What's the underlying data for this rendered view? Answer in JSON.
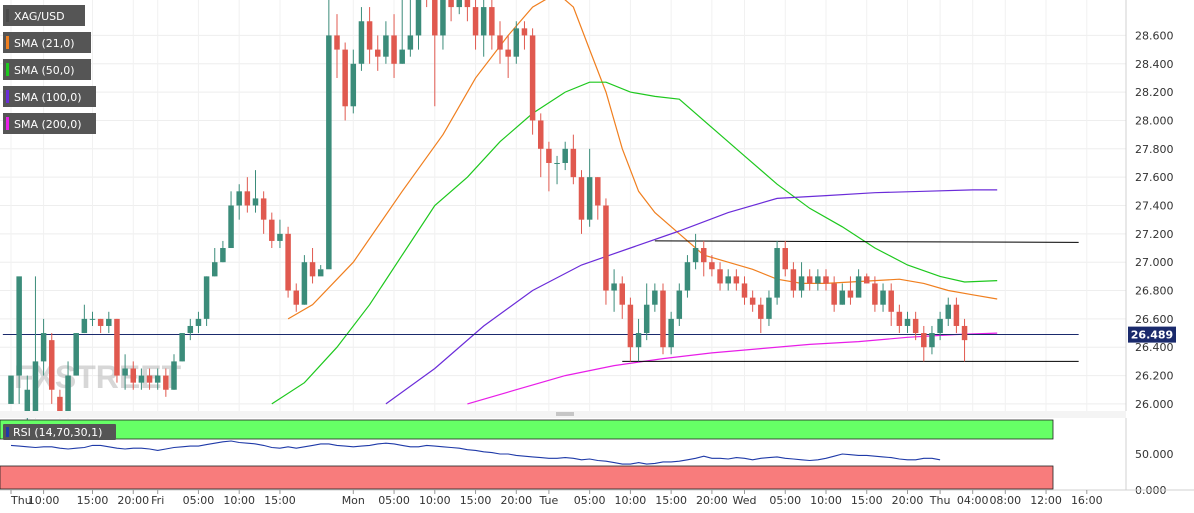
{
  "chart_data": {
    "type": "candlestick",
    "symbol": "XAG/USD",
    "indicators": [
      {
        "label": "XAG/USD",
        "color": "#4a4a4a"
      },
      {
        "label": "SMA (21,0)",
        "color": "#f07f1f"
      },
      {
        "label": "SMA (50,0)",
        "color": "#1ec81e"
      },
      {
        "label": "SMA (100,0)",
        "color": "#6b2cd9"
      },
      {
        "label": "SMA (200,0)",
        "color": "#e81ee8"
      }
    ],
    "ylim": [
      25.95,
      28.85
    ],
    "y_ticks": [
      "28.600",
      "28.400",
      "28.200",
      "28.000",
      "27.800",
      "27.600",
      "27.400",
      "27.200",
      "27.000",
      "26.800",
      "26.600",
      "26.400",
      "26.200",
      "26.000"
    ],
    "y_tick_values": [
      28.6,
      28.4,
      28.2,
      28.0,
      27.8,
      27.6,
      27.4,
      27.2,
      27.0,
      26.8,
      26.6,
      26.4,
      26.2,
      26.0
    ],
    "last_price": "26.489",
    "last_price_value": 26.489,
    "x_ticks": [
      "Thu",
      "10:00",
      "15:00",
      "20:00",
      "Fri",
      "05:00",
      "10:00",
      "15:00",
      "Mon",
      "05:00",
      "10:00",
      "15:00",
      "20:00",
      "Tue",
      "05:00",
      "10:00",
      "15:00",
      "20:00",
      "Wed",
      "05:00",
      "10:00",
      "15:00",
      "20:00",
      "Thu",
      "04:00",
      "08:00",
      "12:00",
      "16:00"
    ],
    "x_tick_positions": [
      0,
      4,
      10,
      15,
      18,
      23,
      28,
      33,
      42,
      47,
      52,
      57,
      62,
      66,
      71,
      76,
      81,
      86,
      90,
      95,
      100,
      105,
      110,
      114,
      118,
      122,
      127,
      132
    ],
    "candles": [
      [
        26.0,
        26.2,
        26.2,
        26.0
      ],
      [
        26.2,
        26.9,
        26.2,
        26.0
      ],
      [
        25.9,
        26.1,
        26.2,
        25.8
      ],
      [
        25.95,
        26.3,
        26.9,
        25.9
      ],
      [
        26.3,
        26.5,
        26.6,
        26.2
      ],
      [
        26.45,
        26.1,
        26.5,
        26.0
      ],
      [
        26.05,
        25.95,
        26.1,
        25.9
      ],
      [
        25.95,
        26.2,
        26.3,
        25.9
      ],
      [
        26.2,
        26.5,
        26.5,
        26.2
      ],
      [
        26.5,
        26.6,
        26.7,
        26.5
      ],
      [
        26.6,
        26.6,
        26.65,
        26.55
      ],
      [
        26.6,
        26.55,
        26.6,
        26.5
      ],
      [
        26.55,
        26.6,
        26.65,
        26.5
      ],
      [
        26.6,
        26.2,
        26.6,
        26.15
      ],
      [
        26.2,
        26.25,
        26.35,
        26.1
      ],
      [
        26.25,
        26.15,
        26.3,
        26.1
      ],
      [
        26.15,
        26.2,
        26.25,
        26.1
      ],
      [
        26.2,
        26.15,
        26.25,
        26.1
      ],
      [
        26.15,
        26.2,
        26.25,
        26.1
      ],
      [
        26.2,
        26.1,
        26.25,
        26.05
      ],
      [
        26.1,
        26.3,
        26.35,
        26.1
      ],
      [
        26.3,
        26.5,
        26.5,
        26.3
      ],
      [
        26.5,
        26.55,
        26.6,
        26.45
      ],
      [
        26.55,
        26.6,
        26.65,
        26.5
      ],
      [
        26.6,
        26.9,
        26.9,
        26.55
      ],
      [
        26.9,
        27.0,
        27.1,
        26.9
      ],
      [
        27.0,
        27.1,
        27.15,
        27.0
      ],
      [
        27.1,
        27.4,
        27.5,
        27.1
      ],
      [
        27.4,
        27.5,
        27.55,
        27.3
      ],
      [
        27.5,
        27.4,
        27.6,
        27.35
      ],
      [
        27.4,
        27.45,
        27.65,
        27.35
      ],
      [
        27.45,
        27.3,
        27.5,
        27.2
      ],
      [
        27.3,
        27.15,
        27.35,
        27.1
      ],
      [
        27.15,
        27.2,
        27.3,
        27.1
      ],
      [
        27.2,
        26.8,
        27.25,
        26.75
      ],
      [
        26.8,
        26.7,
        26.85,
        26.65
      ],
      [
        26.7,
        27.0,
        27.05,
        26.7
      ],
      [
        27.0,
        26.9,
        27.1,
        26.85
      ],
      [
        26.9,
        26.95,
        26.98,
        26.95
      ],
      [
        26.95,
        28.6,
        28.9,
        28.4
      ],
      [
        28.6,
        28.5,
        28.75,
        28.3
      ],
      [
        28.5,
        28.1,
        28.55,
        28.0
      ],
      [
        28.1,
        28.4,
        28.5,
        28.05
      ],
      [
        28.4,
        28.7,
        28.8,
        28.35
      ],
      [
        28.7,
        28.5,
        28.8,
        28.4
      ],
      [
        28.5,
        28.45,
        28.6,
        28.35
      ],
      [
        28.45,
        28.6,
        28.7,
        28.4
      ],
      [
        28.6,
        28.4,
        28.75,
        28.3
      ],
      [
        28.4,
        28.5,
        28.9,
        28.4
      ],
      [
        28.5,
        28.6,
        28.9,
        28.45
      ],
      [
        28.6,
        29.1,
        29.2,
        28.5
      ],
      [
        29.1,
        28.9,
        29.2,
        28.8
      ],
      [
        28.9,
        28.6,
        29.1,
        28.1
      ],
      [
        28.6,
        28.9,
        29.0,
        28.5
      ],
      [
        28.9,
        28.8,
        29.0,
        28.7
      ],
      [
        28.8,
        28.9,
        29.0,
        28.75
      ],
      [
        28.9,
        28.8,
        29.0,
        28.7
      ],
      [
        28.8,
        28.6,
        28.9,
        28.5
      ],
      [
        28.6,
        28.8,
        28.9,
        28.45
      ],
      [
        28.8,
        28.6,
        28.9,
        28.5
      ],
      [
        28.6,
        28.5,
        28.7,
        28.4
      ],
      [
        28.5,
        28.45,
        28.6,
        28.3
      ],
      [
        28.45,
        28.65,
        28.7,
        28.4
      ],
      [
        28.65,
        28.6,
        28.7,
        28.5
      ],
      [
        28.6,
        28.0,
        28.65,
        27.9
      ],
      [
        28.0,
        27.8,
        28.05,
        27.6
      ],
      [
        27.8,
        27.7,
        27.85,
        27.5
      ],
      [
        27.7,
        27.7,
        27.75,
        27.55
      ],
      [
        27.7,
        27.8,
        27.85,
        27.65
      ],
      [
        27.8,
        27.6,
        27.9,
        27.55
      ],
      [
        27.6,
        27.3,
        27.65,
        27.2
      ],
      [
        27.3,
        27.6,
        27.8,
        27.25
      ],
      [
        27.6,
        27.4,
        27.6,
        27.3
      ],
      [
        27.4,
        26.8,
        27.45,
        26.7
      ],
      [
        26.8,
        26.85,
        26.95,
        26.65
      ],
      [
        26.85,
        26.7,
        26.9,
        26.6
      ],
      [
        26.7,
        26.4,
        26.75,
        26.3
      ],
      [
        26.4,
        26.5,
        26.6,
        26.3
      ],
      [
        26.5,
        26.7,
        26.85,
        26.45
      ],
      [
        26.7,
        26.8,
        26.85,
        26.65
      ],
      [
        26.8,
        26.4,
        26.85,
        26.35
      ],
      [
        26.4,
        26.6,
        26.65,
        26.35
      ],
      [
        26.6,
        26.8,
        26.85,
        26.55
      ],
      [
        26.8,
        27.0,
        27.05,
        26.75
      ],
      [
        27.0,
        27.1,
        27.2,
        26.95
      ],
      [
        27.1,
        27.0,
        27.15,
        26.9
      ],
      [
        27.0,
        26.95,
        27.05,
        26.9
      ],
      [
        26.95,
        26.85,
        27.0,
        26.8
      ],
      [
        26.85,
        26.9,
        26.95,
        26.8
      ],
      [
        26.9,
        26.85,
        26.95,
        26.8
      ],
      [
        26.85,
        26.75,
        26.9,
        26.7
      ],
      [
        26.75,
        26.7,
        26.8,
        26.65
      ],
      [
        26.7,
        26.6,
        26.75,
        26.5
      ],
      [
        26.6,
        26.75,
        26.8,
        26.55
      ],
      [
        26.75,
        27.1,
        27.15,
        26.7
      ],
      [
        27.1,
        26.95,
        27.15,
        26.9
      ],
      [
        26.95,
        26.8,
        27.0,
        26.75
      ],
      [
        26.8,
        26.9,
        27.0,
        26.75
      ],
      [
        26.9,
        26.85,
        26.95,
        26.8
      ],
      [
        26.85,
        26.9,
        26.95,
        26.8
      ],
      [
        26.9,
        26.85,
        26.95,
        26.8
      ],
      [
        26.85,
        26.7,
        26.9,
        26.65
      ],
      [
        26.7,
        26.8,
        26.85,
        26.7
      ],
      [
        26.8,
        26.75,
        26.9,
        26.7
      ],
      [
        26.75,
        26.9,
        26.95,
        26.8
      ],
      [
        26.9,
        26.85,
        26.92,
        26.85
      ],
      [
        26.85,
        26.7,
        26.9,
        26.65
      ],
      [
        26.7,
        26.8,
        26.85,
        26.65
      ],
      [
        26.8,
        26.65,
        26.85,
        26.55
      ],
      [
        26.65,
        26.55,
        26.7,
        26.5
      ],
      [
        26.55,
        26.6,
        26.65,
        26.5
      ],
      [
        26.6,
        26.5,
        26.65,
        26.45
      ],
      [
        26.5,
        26.4,
        26.55,
        26.3
      ],
      [
        26.4,
        26.5,
        26.55,
        26.35
      ],
      [
        26.5,
        26.6,
        26.65,
        26.45
      ],
      [
        26.6,
        26.7,
        26.75,
        26.55
      ],
      [
        26.7,
        26.55,
        26.75,
        26.5
      ],
      [
        26.55,
        26.45,
        26.6,
        26.3
      ]
    ],
    "sma21": [
      [
        34,
        26.6
      ],
      [
        37,
        26.7
      ],
      [
        42,
        27.0
      ],
      [
        48,
        27.5
      ],
      [
        53,
        27.9
      ],
      [
        57,
        28.3
      ],
      [
        61,
        28.6
      ],
      [
        64,
        28.8
      ],
      [
        67,
        28.9
      ],
      [
        69,
        28.8
      ],
      [
        71,
        28.5
      ],
      [
        73,
        28.2
      ],
      [
        75,
        27.8
      ],
      [
        77,
        27.5
      ],
      [
        79,
        27.35
      ],
      [
        82,
        27.2
      ],
      [
        85,
        27.05
      ],
      [
        88,
        27.0
      ],
      [
        91,
        26.95
      ],
      [
        94,
        26.88
      ],
      [
        97,
        26.85
      ],
      [
        100,
        26.85
      ],
      [
        103,
        26.86
      ],
      [
        106,
        26.87
      ],
      [
        109,
        26.88
      ],
      [
        112,
        26.85
      ],
      [
        115,
        26.8
      ],
      [
        118,
        26.77
      ],
      [
        121,
        26.74
      ]
    ],
    "sma50": [
      [
        32,
        26.0
      ],
      [
        36,
        26.15
      ],
      [
        40,
        26.4
      ],
      [
        44,
        26.7
      ],
      [
        48,
        27.05
      ],
      [
        52,
        27.4
      ],
      [
        56,
        27.6
      ],
      [
        60,
        27.85
      ],
      [
        64,
        28.05
      ],
      [
        68,
        28.2
      ],
      [
        71,
        28.27
      ],
      [
        73,
        28.27
      ],
      [
        76,
        28.2
      ],
      [
        79,
        28.17
      ],
      [
        82,
        28.15
      ],
      [
        86,
        27.95
      ],
      [
        90,
        27.75
      ],
      [
        94,
        27.55
      ],
      [
        98,
        27.38
      ],
      [
        102,
        27.25
      ],
      [
        106,
        27.1
      ],
      [
        110,
        26.98
      ],
      [
        114,
        26.9
      ],
      [
        117,
        26.86
      ],
      [
        121,
        26.87
      ]
    ],
    "sma100": [
      [
        46,
        26.0
      ],
      [
        52,
        26.25
      ],
      [
        58,
        26.55
      ],
      [
        64,
        26.8
      ],
      [
        70,
        26.98
      ],
      [
        76,
        27.1
      ],
      [
        82,
        27.22
      ],
      [
        88,
        27.35
      ],
      [
        94,
        27.45
      ],
      [
        100,
        27.47
      ],
      [
        106,
        27.49
      ],
      [
        112,
        27.5
      ],
      [
        118,
        27.51
      ],
      [
        121,
        27.51
      ]
    ],
    "sma200": [
      [
        56,
        26.0
      ],
      [
        62,
        26.1
      ],
      [
        68,
        26.2
      ],
      [
        74,
        26.27
      ],
      [
        80,
        26.32
      ],
      [
        86,
        26.36
      ],
      [
        92,
        26.39
      ],
      [
        98,
        26.42
      ],
      [
        104,
        26.44
      ],
      [
        110,
        26.47
      ],
      [
        116,
        26.49
      ],
      [
        121,
        26.5
      ]
    ],
    "lines": [
      {
        "x0": 79,
        "y0": 27.15,
        "x1": 131,
        "y1": 27.14,
        "color": "#000000"
      },
      {
        "x0": 75,
        "y0": 26.3,
        "x1": 131,
        "y1": 26.3,
        "color": "#000000"
      },
      {
        "x0": -1,
        "y0": 26.49,
        "x1": 131,
        "y1": 26.49,
        "color": "#1a2a6c"
      }
    ],
    "watermark": "FXSTREET",
    "rsi": {
      "label": "RSI (14,70,30,1)",
      "ylim": [
        0,
        100
      ],
      "y_ticks": [
        "50.000",
        "0.000"
      ],
      "y_tick_values": [
        50,
        0
      ],
      "overbought": 70,
      "oversold": 30,
      "values": [
        62,
        61,
        60,
        59,
        60,
        60,
        58,
        57,
        58,
        59,
        62,
        62,
        60,
        58,
        57,
        58,
        58,
        57,
        55,
        57,
        59,
        60,
        61,
        61,
        63,
        65,
        67,
        68,
        66,
        65,
        64,
        62,
        59,
        58,
        60,
        58,
        60,
        62,
        64,
        64,
        62,
        61,
        60,
        61,
        62,
        64,
        65,
        64,
        62,
        60,
        60,
        62,
        61,
        60,
        59,
        58,
        56,
        55,
        53,
        52,
        50,
        50,
        48,
        47,
        46,
        45,
        44,
        44,
        45,
        44,
        42,
        43,
        41,
        40,
        38,
        36,
        36,
        38,
        36,
        37,
        39,
        39,
        40,
        42,
        44,
        47,
        44,
        44,
        43,
        45,
        44,
        42,
        44,
        45,
        46,
        44,
        43,
        42,
        41,
        42,
        44,
        47,
        50,
        49,
        48,
        48,
        47,
        46,
        45,
        43,
        42,
        42,
        44,
        44,
        42
      ]
    }
  }
}
